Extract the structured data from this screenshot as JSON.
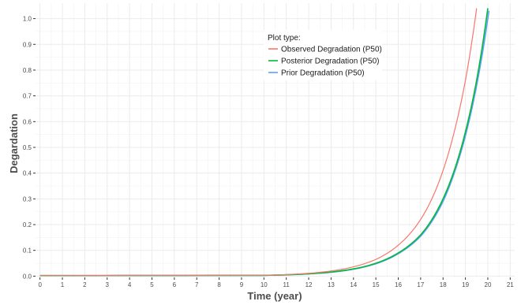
{
  "chart_data": {
    "type": "line",
    "xlabel": "Time (year)",
    "ylabel": "Degardation",
    "xlim": [
      -0.2,
      21.2
    ],
    "ylim": [
      -0.005,
      1.06
    ],
    "x_ticks": [
      0,
      1,
      2,
      3,
      4,
      5,
      6,
      7,
      8,
      9,
      10,
      11,
      12,
      13,
      14,
      15,
      16,
      17,
      18,
      19,
      20,
      21
    ],
    "y_ticks": [
      0.0,
      0.1,
      0.2,
      0.3,
      0.4,
      0.5,
      0.6,
      0.7,
      0.8,
      0.9,
      1.0
    ],
    "y_tick_labels": [
      "0.0",
      "0.1",
      "0.2",
      "0.3",
      "0.4",
      "0.5",
      "0.6",
      "0.7",
      "0.8",
      "0.9",
      "1.0"
    ],
    "grid": true,
    "legend": {
      "title": "Plot type:",
      "placement": "top-center"
    },
    "series": [
      {
        "name": "Observed Degradation (P50)",
        "color": "#F8766D",
        "x": [
          0,
          10,
          11,
          12,
          13,
          14,
          15,
          16,
          17,
          17.5,
          18,
          18.5,
          19,
          19.5
        ],
        "y": [
          0.002,
          0.003,
          0.006,
          0.011,
          0.02,
          0.036,
          0.065,
          0.12,
          0.22,
          0.3,
          0.41,
          0.56,
          0.76,
          1.04
        ]
      },
      {
        "name": "Posterior Degradation (P50)",
        "color": "#00BA38",
        "x": [
          0,
          10,
          11,
          12,
          13,
          14,
          15,
          16,
          17,
          18,
          18.5,
          19,
          19.5,
          20
        ],
        "y": [
          0.002,
          0.003,
          0.005,
          0.009,
          0.016,
          0.028,
          0.05,
          0.09,
          0.16,
          0.3,
          0.41,
          0.56,
          0.76,
          1.04
        ]
      },
      {
        "name": "Prior Degradation (P50)",
        "color": "#619CFF",
        "x": [
          0,
          10,
          11,
          12,
          13,
          14,
          15,
          16,
          17,
          18,
          18.5,
          19,
          19.5,
          20.05
        ],
        "y": [
          0.002,
          0.003,
          0.005,
          0.009,
          0.015,
          0.027,
          0.048,
          0.087,
          0.155,
          0.29,
          0.4,
          0.545,
          0.74,
          1.03
        ]
      }
    ]
  }
}
